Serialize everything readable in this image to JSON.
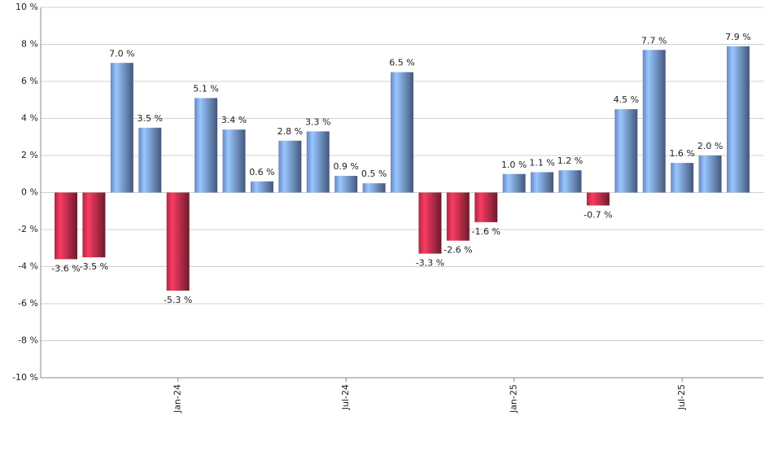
{
  "chart_data": {
    "type": "bar",
    "categories": [
      null,
      null,
      null,
      null,
      "Jan-24",
      null,
      null,
      null,
      null,
      null,
      "Jul-24",
      null,
      null,
      null,
      null,
      null,
      "Jan-25",
      null,
      null,
      null,
      null,
      null,
      "Jul-25",
      null,
      null
    ],
    "values": [
      -3.6,
      -3.5,
      7.0,
      3.5,
      -5.3,
      5.1,
      3.4,
      0.6,
      2.8,
      3.3,
      0.9,
      0.5,
      6.5,
      -3.3,
      -2.6,
      -1.6,
      1.0,
      1.1,
      1.2,
      -0.7,
      4.5,
      7.7,
      1.6,
      2.0,
      7.9
    ],
    "value_labels": [
      "-3.6 %",
      "-3.5 %",
      "7.0 %",
      "3.5 %",
      "-5.3 %",
      "5.1 %",
      "3.4 %",
      "0.6 %",
      "2.8 %",
      "3.3 %",
      "0.9 %",
      "0.5 %",
      "6.5 %",
      "-3.3 %",
      "-2.6 %",
      "-1.6 %",
      "1.0 %",
      "1.1 %",
      "1.2 %",
      "-0.7 %",
      "4.5 %",
      "7.7 %",
      "1.6 %",
      "2.0 %",
      "7.9 %"
    ],
    "positive_color": "#7a9ee0",
    "negative_color": "#c8304f",
    "ylim": [
      -10,
      10
    ],
    "yticks": [
      {
        "value": -10,
        "label": "-10 %"
      },
      {
        "value": -8,
        "label": "-8 %"
      },
      {
        "value": -6,
        "label": "-6 %"
      },
      {
        "value": -4,
        "label": "-4 %"
      },
      {
        "value": -2,
        "label": "-2 %"
      },
      {
        "value": 0,
        "label": "0 %"
      },
      {
        "value": 2,
        "label": "2 %"
      },
      {
        "value": 4,
        "label": "4 %"
      },
      {
        "value": 6,
        "label": "6 %"
      },
      {
        "value": 8,
        "label": "8 %"
      },
      {
        "value": 10,
        "label": "10 %"
      }
    ],
    "grid": true
  }
}
